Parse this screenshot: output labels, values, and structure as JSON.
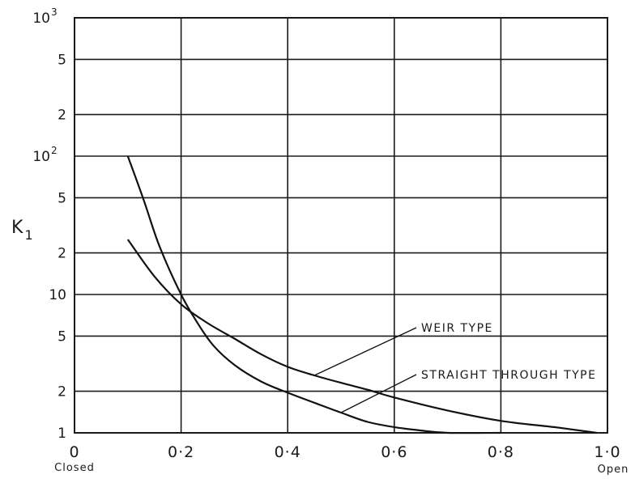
{
  "chart_data": {
    "type": "line",
    "x_scale": "linear",
    "y_scale": "log",
    "xlim": [
      0,
      1.0
    ],
    "ylim": [
      1,
      1000
    ],
    "grid": true,
    "ylabel": {
      "main": "K",
      "sub": "1"
    },
    "x_ticks": [
      {
        "value": 0,
        "label": "0"
      },
      {
        "value": 0.2,
        "label": "0·2"
      },
      {
        "value": 0.4,
        "label": "0·4"
      },
      {
        "value": 0.6,
        "label": "0·6"
      },
      {
        "value": 0.8,
        "label": "0·8"
      },
      {
        "value": 1.0,
        "label": "1·0"
      }
    ],
    "x_end_labels": {
      "left": "Closed",
      "right": "Open"
    },
    "y_ticks": [
      {
        "value": 1,
        "label": "1",
        "exp": ""
      },
      {
        "value": 2,
        "label": "2",
        "exp": ""
      },
      {
        "value": 5,
        "label": "5",
        "exp": ""
      },
      {
        "value": 10,
        "label": "10",
        "exp": ""
      },
      {
        "value": 20,
        "label": "2",
        "exp": ""
      },
      {
        "value": 50,
        "label": "5",
        "exp": ""
      },
      {
        "value": 100,
        "label": "10",
        "exp": "2"
      },
      {
        "value": 200,
        "label": "2",
        "exp": ""
      },
      {
        "value": 500,
        "label": "5",
        "exp": ""
      },
      {
        "value": 1000,
        "label": "10",
        "exp": "3"
      }
    ],
    "series": [
      {
        "name": "WEIR TYPE",
        "x": [
          0.1,
          0.15,
          0.2,
          0.25,
          0.3,
          0.35,
          0.4,
          0.45,
          0.5,
          0.55,
          0.6,
          0.7,
          0.8,
          0.9,
          0.98
        ],
        "y": [
          25,
          13.5,
          8.5,
          6.2,
          4.8,
          3.7,
          3.0,
          2.6,
          2.3,
          2.05,
          1.8,
          1.45,
          1.22,
          1.1,
          1.0
        ]
      },
      {
        "name": "STRAIGHT THROUGH TYPE",
        "x": [
          0.1,
          0.13,
          0.16,
          0.2,
          0.23,
          0.26,
          0.3,
          0.35,
          0.4,
          0.45,
          0.5,
          0.55,
          0.6,
          0.65,
          0.7,
          0.8
        ],
        "y": [
          100,
          48,
          22,
          10,
          6.3,
          4.3,
          3.1,
          2.35,
          1.95,
          1.65,
          1.4,
          1.2,
          1.1,
          1.04,
          1.0,
          1.0
        ]
      }
    ],
    "annotations": [
      {
        "text": "WEIR TYPE",
        "series": 0,
        "at_x": 0.45
      },
      {
        "text": "STRAIGHT THROUGH TYPE",
        "series": 1,
        "at_x": 0.5
      }
    ]
  }
}
